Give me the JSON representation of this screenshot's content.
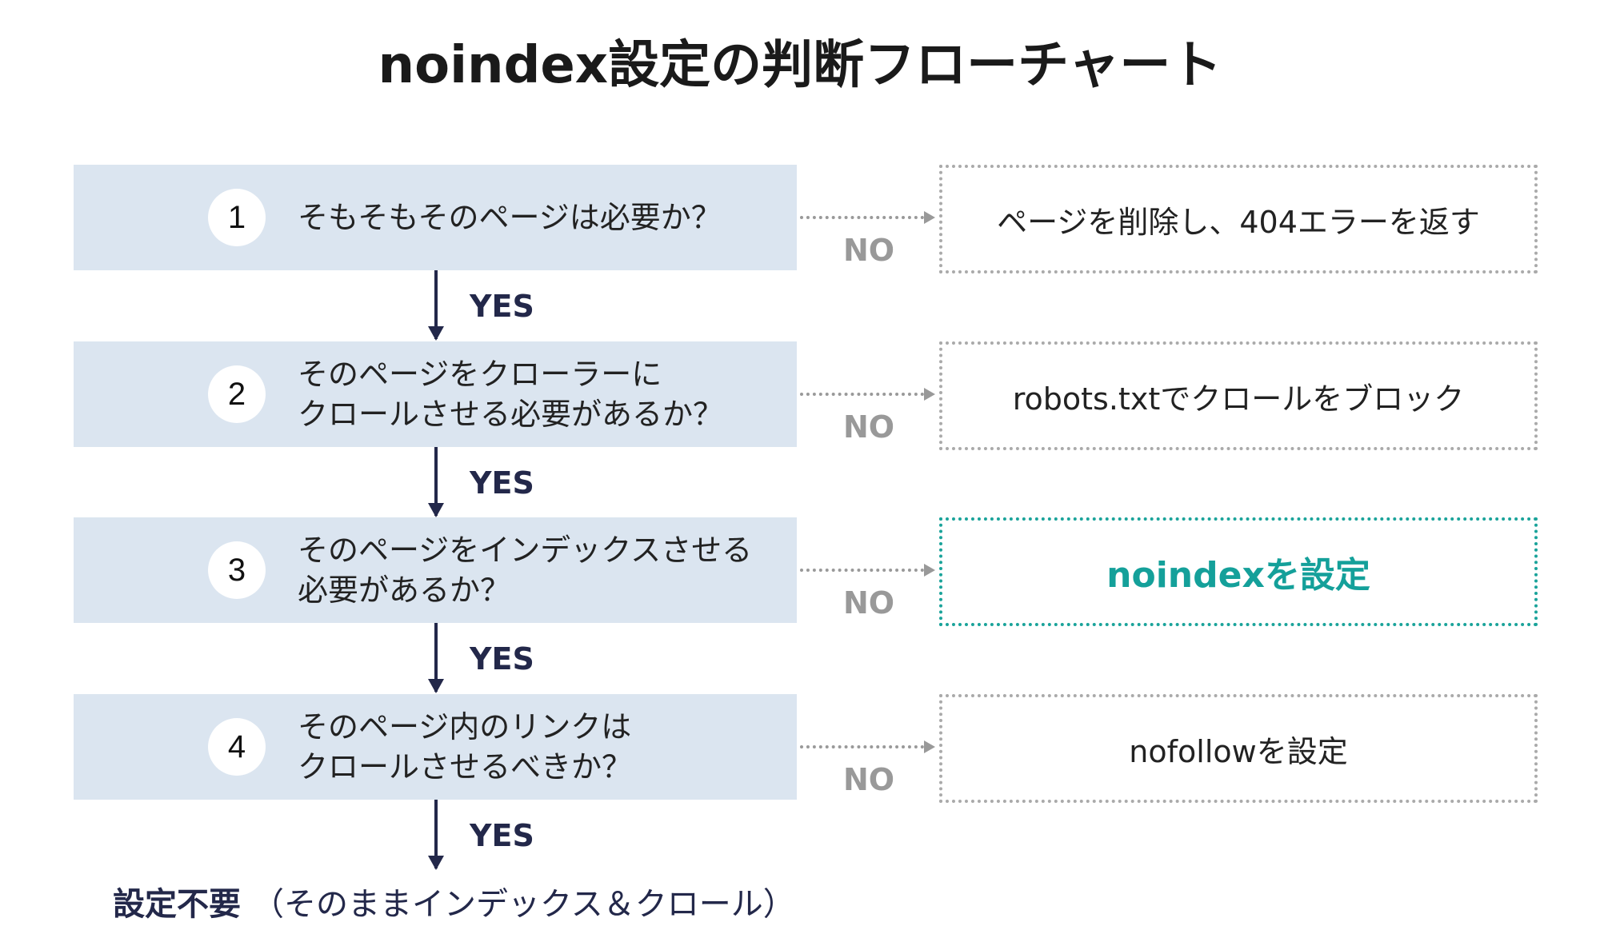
{
  "title": "noindex設定の判断フローチャート",
  "colors": {
    "question_bg": "#dbe5f0",
    "arrow": "#23284a",
    "no": "#999999",
    "highlight": "#14a09a"
  },
  "yes_label": "YES",
  "no_label": "NO",
  "steps": [
    {
      "number": "1",
      "question": "そもそもそのページは必要か？",
      "no_action": "ページを削除し、404エラーを返す",
      "highlight": false
    },
    {
      "number": "2",
      "question": "そのページをクローラーに\nクロールさせる必要があるか？",
      "no_action": "robots.txtでクロールをブロック",
      "highlight": false
    },
    {
      "number": "3",
      "question": "そのページをインデックスさせる\n必要があるか？",
      "no_action": "noindexを設定",
      "highlight": true
    },
    {
      "number": "4",
      "question": "そのページ内のリンクは\nクロールさせるべきか？",
      "no_action": "nofollowを設定",
      "highlight": false
    }
  ],
  "final": {
    "strong": "設定不要",
    "note": "（そのままインデックス＆クロール）"
  }
}
